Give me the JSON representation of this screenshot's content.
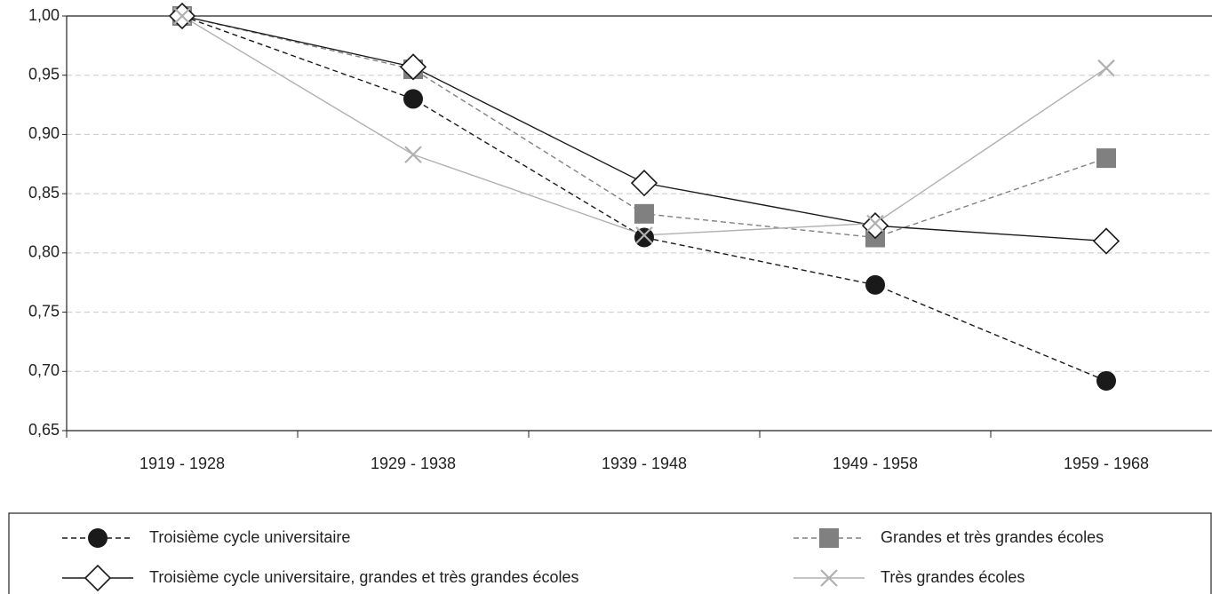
{
  "chart_data": {
    "type": "line",
    "categories": [
      "1919 - 1928",
      "1929 - 1938",
      "1939 - 1948",
      "1949 - 1958",
      "1959 - 1968"
    ],
    "series": [
      {
        "name": "Troisième cycle universitaire",
        "color": "#1a1a1a",
        "line_style": "dashed",
        "marker": "circle",
        "values": [
          1.0,
          0.93,
          0.813,
          0.773,
          0.692
        ]
      },
      {
        "name": "Grandes et très grandes écoles",
        "color": "#808080",
        "line_style": "dashed",
        "marker": "square",
        "values": [
          1.0,
          0.955,
          0.833,
          0.813,
          0.88
        ]
      },
      {
        "name": "Troisième cycle universitaire, grandes et très grandes écoles",
        "color": "#1a1a1a",
        "line_style": "solid",
        "marker": "diamond",
        "values": [
          1.0,
          0.957,
          0.859,
          0.823,
          0.81
        ]
      },
      {
        "name": "Très grandes écoles",
        "color": "#b0b0b0",
        "line_style": "solid",
        "marker": "x",
        "values": [
          1.0,
          0.883,
          0.815,
          0.825,
          0.956
        ]
      }
    ],
    "ylim": [
      0.65,
      1.0
    ],
    "yticks": [
      {
        "value": 0.65,
        "label": "0,65"
      },
      {
        "value": 0.7,
        "label": "0,70"
      },
      {
        "value": 0.75,
        "label": "0,75"
      },
      {
        "value": 0.8,
        "label": "0,80"
      },
      {
        "value": 0.85,
        "label": "0,85"
      },
      {
        "value": 0.9,
        "label": "0,90"
      },
      {
        "value": 0.95,
        "label": "0,95"
      },
      {
        "value": 1.0,
        "label": "1,00"
      }
    ],
    "grid": true,
    "legend": "bottom"
  }
}
